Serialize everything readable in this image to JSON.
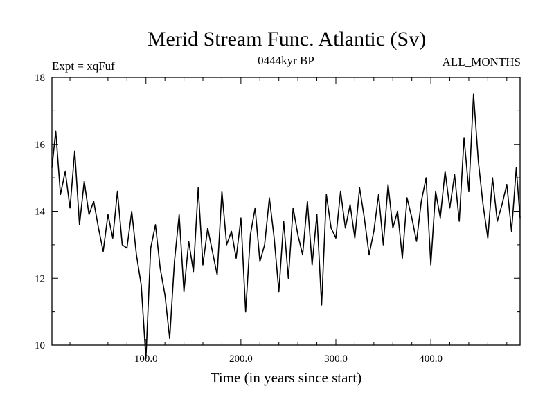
{
  "chart_data": {
    "type": "line",
    "title": "Merid Stream Func. Atlantic (Sv)",
    "subtitle_left": "Expt = xqFuf",
    "subtitle_center": "0444kyr BP",
    "subtitle_right": "ALL_MONTHS",
    "xlabel": "Time (in years since start)",
    "ylabel": "",
    "xlim": [
      1,
      494
    ],
    "ylim": [
      10,
      18
    ],
    "xticks": [
      100,
      200,
      300,
      400
    ],
    "xtick_labels": [
      "100.0",
      "200.0",
      "300.0",
      "400.0"
    ],
    "yticks": [
      10,
      12,
      14,
      16,
      18
    ],
    "ytick_labels": [
      "10",
      "12",
      "14",
      "16",
      "18"
    ],
    "series": [
      {
        "name": "Merid Stream Func. Atlantic",
        "x": [
          1,
          5,
          10,
          15,
          20,
          25,
          30,
          35,
          40,
          45,
          50,
          55,
          60,
          65,
          70,
          75,
          80,
          85,
          90,
          95,
          100,
          105,
          110,
          115,
          120,
          125,
          130,
          135,
          140,
          145,
          150,
          155,
          160,
          165,
          170,
          175,
          180,
          185,
          190,
          195,
          200,
          205,
          210,
          215,
          220,
          225,
          230,
          235,
          240,
          245,
          250,
          255,
          260,
          265,
          270,
          275,
          280,
          285,
          290,
          295,
          300,
          305,
          310,
          315,
          320,
          325,
          330,
          335,
          340,
          345,
          350,
          355,
          360,
          365,
          370,
          375,
          380,
          385,
          390,
          395,
          400,
          405,
          410,
          415,
          420,
          425,
          430,
          435,
          440,
          445,
          450,
          455,
          460,
          465,
          470,
          475,
          480,
          485,
          490,
          494
        ],
        "values": [
          15.3,
          16.4,
          14.5,
          15.2,
          14.1,
          15.8,
          13.6,
          14.9,
          13.9,
          14.3,
          13.5,
          12.8,
          13.9,
          13.2,
          14.6,
          13.0,
          12.9,
          14.0,
          12.7,
          11.8,
          9.6,
          12.9,
          13.6,
          12.3,
          11.5,
          10.2,
          12.5,
          13.9,
          11.6,
          13.1,
          12.2,
          14.7,
          12.4,
          13.5,
          12.8,
          12.1,
          14.6,
          13.0,
          13.4,
          12.6,
          13.8,
          11.0,
          13.3,
          14.1,
          12.5,
          13.0,
          14.4,
          13.2,
          11.6,
          13.7,
          12.0,
          14.1,
          13.3,
          12.7,
          14.3,
          12.4,
          13.9,
          11.2,
          14.5,
          13.5,
          13.2,
          14.6,
          13.5,
          14.2,
          13.2,
          14.7,
          13.8,
          12.7,
          13.4,
          14.5,
          13.0,
          14.8,
          13.5,
          14.0,
          12.6,
          14.4,
          13.8,
          13.1,
          14.3,
          15.0,
          12.4,
          14.6,
          13.8,
          15.2,
          14.1,
          15.1,
          13.7,
          16.2,
          14.6,
          17.5,
          15.5,
          14.2,
          13.2,
          15.0,
          13.7,
          14.2,
          14.8,
          13.4,
          15.3,
          13.8
        ]
      }
    ]
  }
}
